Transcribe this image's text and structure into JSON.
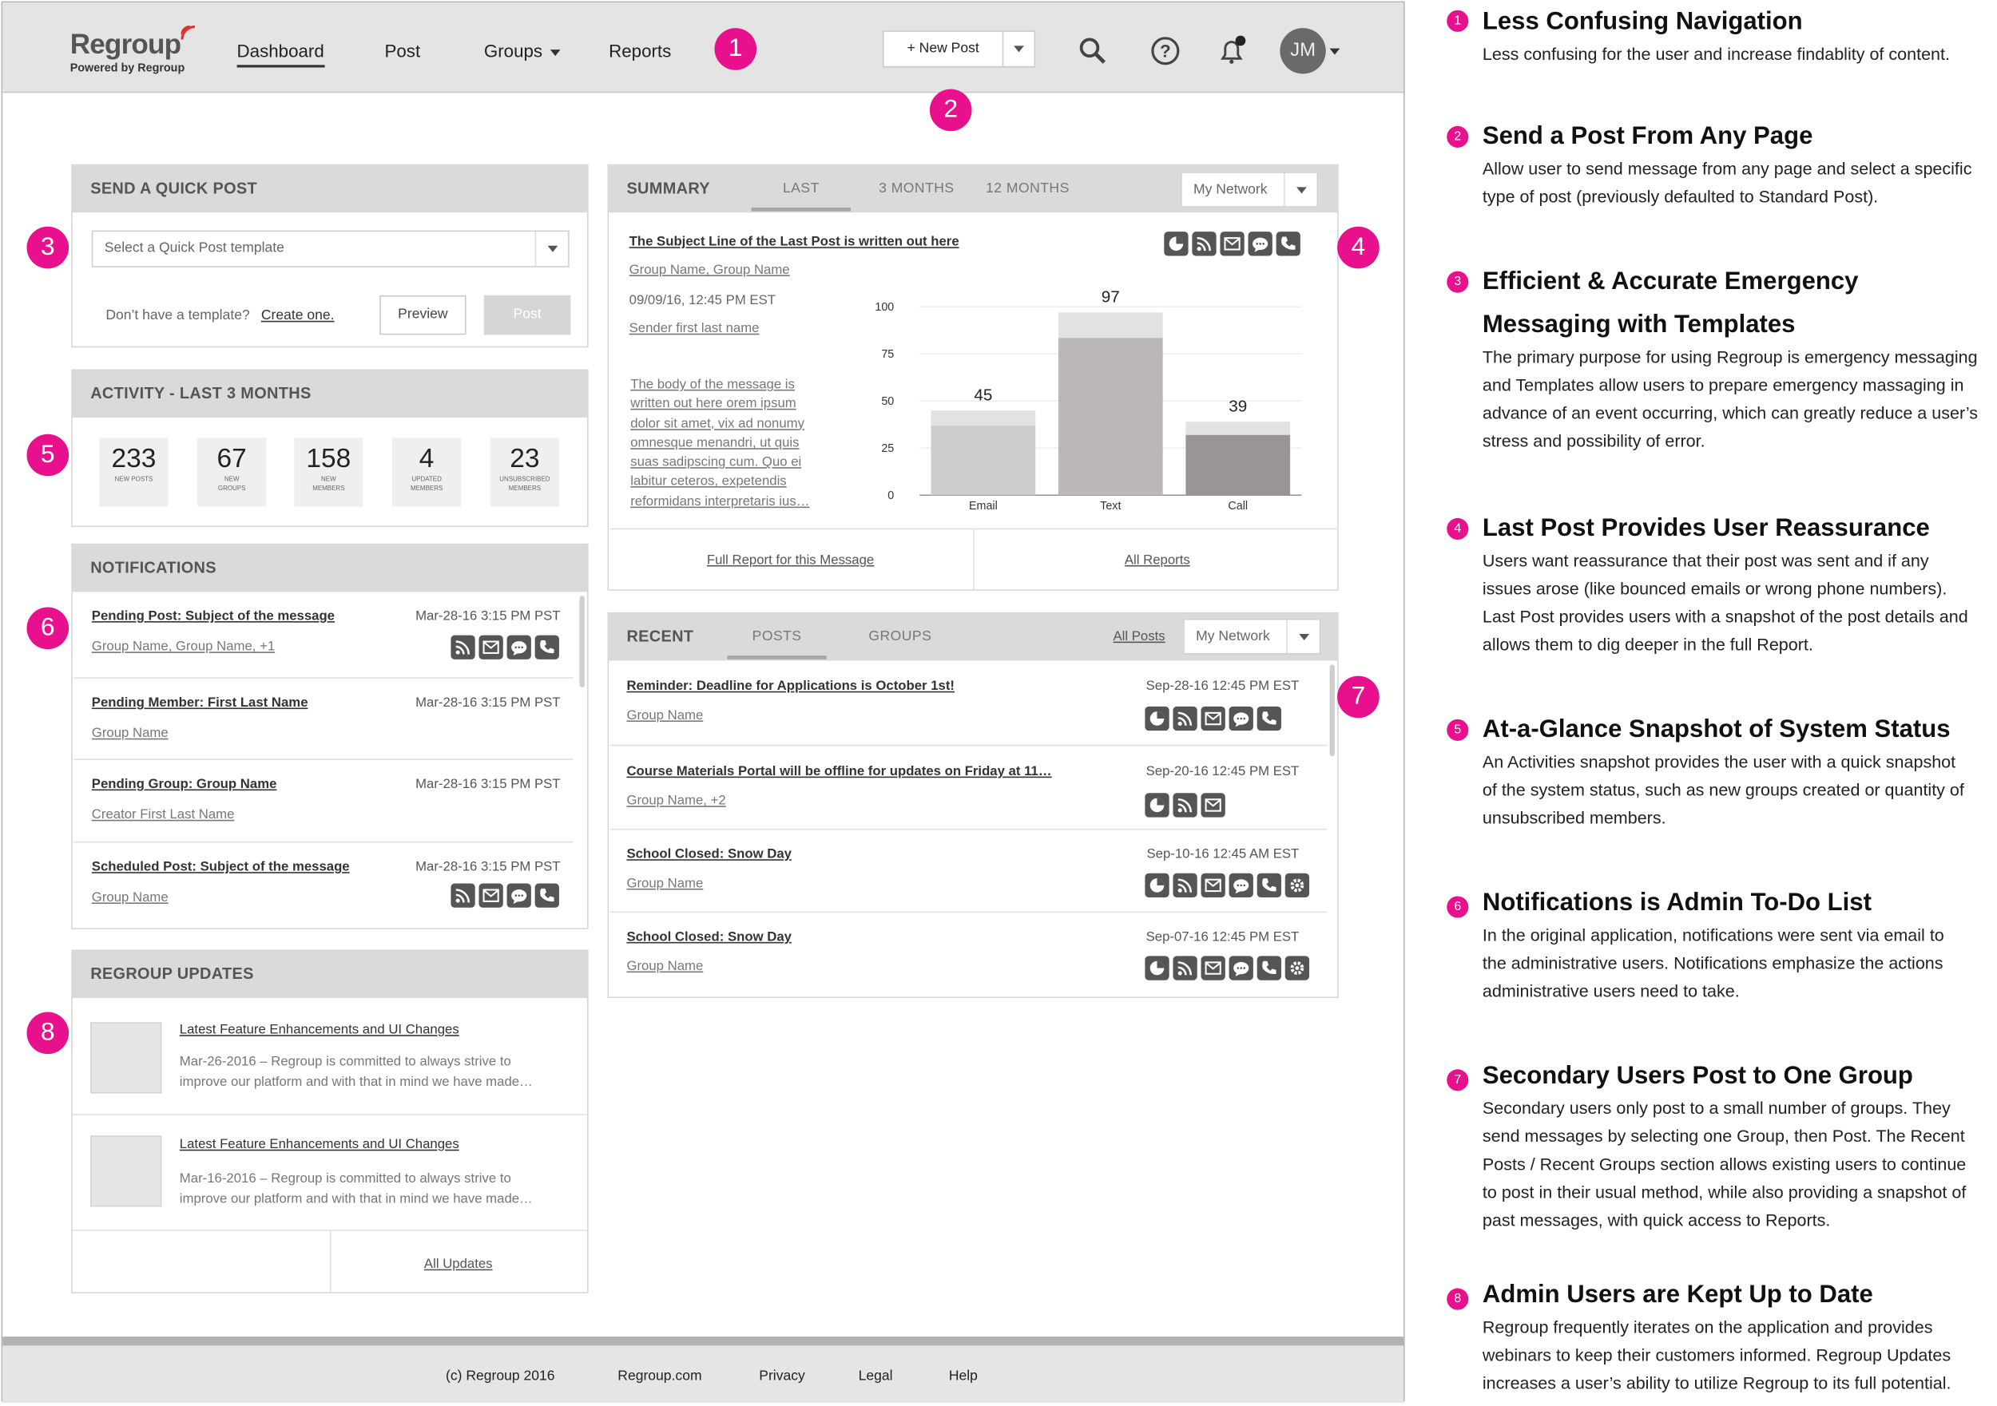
{
  "header": {
    "logo_text": "Regroup",
    "logo_sub": "Powered by Regroup",
    "nav": [
      "Dashboard",
      "Post",
      "Groups",
      "Reports"
    ],
    "new_post_label": "+ New Post",
    "avatar_initials": "JM"
  },
  "badges": [
    "1",
    "2",
    "3",
    "4",
    "5",
    "6",
    "7",
    "8"
  ],
  "quick_post": {
    "title": "SEND A QUICK POST",
    "select_placeholder": "Select a Quick Post template",
    "no_template": "Don’t have a template?",
    "create_link": "Create one.",
    "preview": "Preview",
    "post": "Post"
  },
  "activity": {
    "title": "ACTIVITY - LAST 3 MONTHS",
    "stats": [
      {
        "value": "233",
        "label": "NEW POSTS"
      },
      {
        "value": "67",
        "label": "NEW GROUPS"
      },
      {
        "value": "158",
        "label": "NEW MEMBERS"
      },
      {
        "value": "4",
        "label": "UPDATED MEMBERS"
      },
      {
        "value": "23",
        "label": "UNSUBSCRIBED MEMBERS"
      }
    ]
  },
  "notifications": {
    "title": "NOTIFICATIONS",
    "items": [
      {
        "title": "Pending Post: Subject of the message",
        "sub": "Group Name, Group Name, +1",
        "date": "Mar-28-16 3:15 PM PST"
      },
      {
        "title": "Pending Member: First Last Name",
        "sub": "Group Name",
        "date": "Mar-28-16 3:15 PM PST"
      },
      {
        "title": "Pending Group: Group Name",
        "sub": "Creator First Last Name",
        "date": "Mar-28-16 3:15 PM PST"
      },
      {
        "title": "Scheduled Post: Subject of the message",
        "sub": "Group Name",
        "date": "Mar-28-16 3:15 PM PST"
      }
    ]
  },
  "updates": {
    "title": "REGROUP UPDATES",
    "items": [
      {
        "title": "Latest Feature Enhancements and UI Changes",
        "line1": "Mar-26-2016 – Regroup is committed to always strive to",
        "line2": "improve our platform and with that in mind we have made…"
      },
      {
        "title": "Latest Feature Enhancements and UI Changes",
        "line1": "Mar-16-2016 – Regroup is committed to always strive to",
        "line2": "improve our platform and with that in mind we have made…"
      }
    ],
    "all_link": "All Updates"
  },
  "summary": {
    "title": "SUMMARY",
    "tabs": [
      "LAST",
      "3 MONTHS",
      "12 MONTHS"
    ],
    "network_select": "My Network",
    "subject": "The Subject Line of the Last Post is written out here",
    "groups": "Group Name, Group Name",
    "date": "09/09/16, 12:45 PM EST",
    "sender": "Sender first last name",
    "body": [
      "The body of the message is",
      "written out here orem ipsum",
      "dolor sit amet, vix ad nonumy",
      "omnesque menandri",
      "suas sadipscing cum. Quo ei",
      "labitur ceteros, expetendis",
      "reformidans interpretaris ius…"
    ],
    "body_inline": "omnesque menandri",
    "full_report": "Full Report for this Message",
    "all_reports": "All Reports"
  },
  "chart_data": {
    "type": "bar",
    "categories": [
      "Email",
      "Text",
      "Call"
    ],
    "values": [
      45,
      97,
      39
    ],
    "ylim": [
      0,
      100
    ],
    "yticks": [
      0,
      25,
      50,
      75,
      100
    ]
  },
  "recent": {
    "title": "RECENT",
    "tabs": [
      "POSTS",
      "GROUPS"
    ],
    "all_posts": "All Posts",
    "network_select": "My Network",
    "items": [
      {
        "title": "Reminder: Deadline for Applications is October 1st!",
        "sub": "Group Name",
        "date": "Sep-28-16 12:45 PM EST"
      },
      {
        "title": "Course Materials Portal will be offline for updates on Friday at 11…",
        "sub": "Group Name, +2",
        "date": "Sep-20-16 12:45 PM EST"
      },
      {
        "title": "School Closed: Snow Day",
        "sub": "Group Name",
        "date": "Sep-10-16 12:45 AM EST"
      },
      {
        "title": "School Closed: Snow Day",
        "sub": "Group Name",
        "date": "Sep-07-16 12:45 PM EST"
      }
    ]
  },
  "footer": [
    "(c) Regroup 2016",
    "Regroup.com",
    "Privacy",
    "Legal",
    "Help"
  ],
  "annotations": [
    {
      "num": "1",
      "title": "Less Confusing Navigation",
      "text": [
        "Less confusing for the user and increase findablity of content."
      ]
    },
    {
      "num": "2",
      "title": "Send a Post From Any Page",
      "text": [
        "Allow user to send message from any page and select a specific",
        "type of post (previously defaulted to Standard Post)."
      ]
    },
    {
      "num": "3",
      "title": "Efficient & Accurate Emergency",
      "title2": "Messaging with Templates",
      "text": [
        "The primary purpose for using Regroup is emergency messaging",
        "and Templates allow users to prepare emergency massaging in",
        "advance of an event occurring, which can greatly reduce a user’s",
        "stress and possibility of error."
      ]
    },
    {
      "num": "4",
      "title": "Last Post Provides User Reassurance",
      "text": [
        "Users want reassurance that their post was sent and if any",
        "issues arose (like bounced emails or wrong phone numbers).",
        "Last Post provides users with a snapshot of the post details and",
        "allows them to dig deeper in the full Report."
      ]
    },
    {
      "num": "5",
      "title": "At-a-Glance Snapshot of System Status",
      "text": [
        "An Activities snapshot provides the user with a quick snapshot",
        "of the system status, such as new groups created or quantity of",
        "unsubscribed members."
      ]
    },
    {
      "num": "6",
      "title": "Notifications is Admin To-Do List",
      "text": [
        "In the original application, notifications were sent via email to",
        "the administrative users. Notifications emphasize the actions",
        "administrative users need to take."
      ]
    },
    {
      "num": "7",
      "title": "Secondary Users Post to One Group",
      "text": [
        "Secondary users only post to a small number of groups. They",
        "send messages by selecting one Group, then Post. The Recent",
        "Posts / Recent Groups section allows existing users to continue",
        "to post in their usual method, while also providing a snapshot of",
        "past messages, with quick access to Reports."
      ]
    },
    {
      "num": "8",
      "title": "Admin Users are Kept Up to Date",
      "text": [
        "Regroup frequently iterates on the application and provides",
        "webinars to keep their customers informed. Regroup Updates",
        "increases a user’s ability to utilize Regroup to its full potential."
      ]
    }
  ],
  "icon_names": [
    "rss-icon",
    "email-icon",
    "chat-icon",
    "phone-icon",
    "pie-icon",
    "gear-icon",
    "search-icon",
    "help-icon",
    "bell-icon"
  ]
}
